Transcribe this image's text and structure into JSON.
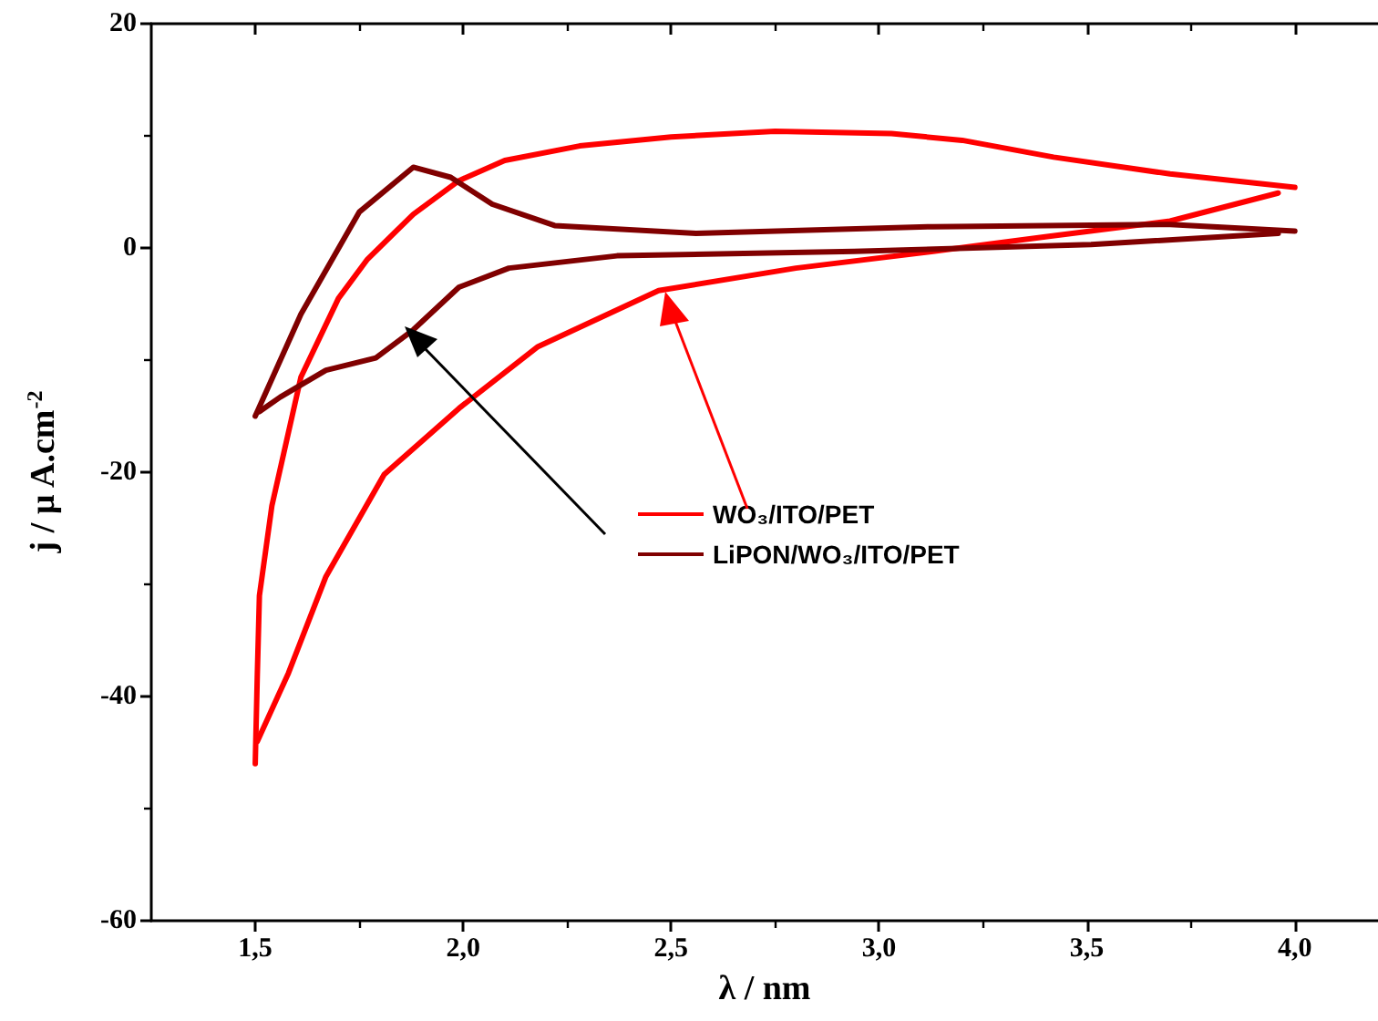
{
  "chart_data": {
    "type": "line",
    "xlabel": "λ / nm",
    "ylabel": "j / µ A.cm$^{-2}$",
    "xlim": [
      1.25,
      4.2
    ],
    "ylim": [
      -60,
      20
    ],
    "xticks": [
      {
        "value": 1.5,
        "label": "1,5"
      },
      {
        "value": 2.0,
        "label": "2,0"
      },
      {
        "value": 2.5,
        "label": "2,5"
      },
      {
        "value": 3.0,
        "label": "3,0"
      },
      {
        "value": 3.5,
        "label": "3,5"
      },
      {
        "value": 4.0,
        "label": "4,0"
      }
    ],
    "yticks": [
      -60,
      -40,
      -20,
      0,
      20
    ],
    "legend": "center",
    "grid": false,
    "marker": "none",
    "line_style": "solid",
    "series": [
      {
        "name": "WO₃/ITO/PET",
        "color": "#ff0000",
        "x": [
          1.5,
          1.505,
          1.51,
          1.54,
          1.61,
          1.7,
          1.77,
          1.88,
          1.99,
          2.1,
          2.28,
          2.5,
          2.75,
          3.03,
          3.2,
          3.42,
          3.7,
          4.0
        ],
        "values": [
          -46,
          -38,
          -31,
          -23,
          -11.5,
          -4.5,
          -1,
          3,
          6,
          7.8,
          9.1,
          9.9,
          10.4,
          10.2,
          9.6,
          8.1,
          6.6,
          5.4
        ]
      },
      {
        "color": "#ff0000",
        "x": [
          1.505,
          1.58,
          1.67,
          1.81,
          1.99,
          2.18,
          2.47,
          2.8,
          3.13,
          3.4,
          3.7,
          3.96
        ],
        "values": [
          -44,
          -37.9,
          -29.3,
          -20.2,
          -14.3,
          -8.8,
          -3.8,
          -1.8,
          -0.3,
          1.0,
          2.4,
          4.9
        ]
      },
      {
        "name": "LiPON/WO₃/ITO/PET",
        "color": "#800000",
        "x": [
          1.5,
          1.61,
          1.75,
          1.88,
          1.97,
          2.07,
          2.22,
          2.56,
          3.13,
          3.7,
          4.0
        ],
        "values": [
          -15,
          -5.9,
          3.2,
          7.2,
          6.3,
          3.9,
          2,
          1.3,
          1.9,
          2.1,
          1.5
        ]
      },
      {
        "color": "#800000",
        "x": [
          1.51,
          1.56,
          1.67,
          1.79,
          1.88,
          1.99,
          2.11,
          2.37,
          2.94,
          3.51,
          3.96
        ],
        "values": [
          -14.6,
          -13.3,
          -10.9,
          -9.8,
          -7.3,
          -3.5,
          -1.8,
          -0.7,
          -0.3,
          0.3,
          1.3
        ]
      }
    ]
  }
}
